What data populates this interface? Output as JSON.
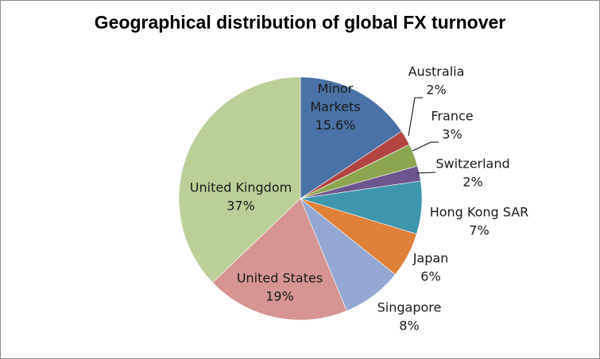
{
  "chart_data": {
    "type": "pie",
    "title": "Geographical distribution of global FX turnover",
    "slices": [
      {
        "label": "Minor Markets",
        "display_label": [
          "Minor",
          "Markets"
        ],
        "value": 15.6,
        "value_label": "15.6%",
        "color": "#4a72a6"
      },
      {
        "label": "Australia",
        "display_label": [
          "Australia"
        ],
        "value": 2,
        "value_label": "2%",
        "color": "#b24541"
      },
      {
        "label": "France",
        "display_label": [
          "France"
        ],
        "value": 3,
        "value_label": "3%",
        "color": "#8ba64f"
      },
      {
        "label": "Switzerland",
        "display_label": [
          "Switzerland"
        ],
        "value": 2,
        "value_label": "2%",
        "color": "#6d568e"
      },
      {
        "label": "Hong Kong SAR",
        "display_label": [
          "Hong Kong SAR"
        ],
        "value": 7,
        "value_label": "7%",
        "color": "#3e96ad"
      },
      {
        "label": "Japan",
        "display_label": [
          "Japan"
        ],
        "value": 6,
        "value_label": "6%",
        "color": "#e0813a"
      },
      {
        "label": "Singapore",
        "display_label": [
          "Singapore"
        ],
        "value": 8,
        "value_label": "8%",
        "color": "#94a8d3"
      },
      {
        "label": "United States",
        "display_label": [
          "United States"
        ],
        "value": 19,
        "value_label": "19%",
        "color": "#d69592"
      },
      {
        "label": "United Kingdom",
        "display_label": [
          "United Kingdom"
        ],
        "value": 37,
        "value_label": "37%",
        "color": "#bbcf98"
      }
    ],
    "start_angle": "12 o'clock",
    "direction": "clockwise",
    "legend": "none (category labels beside slices)"
  }
}
